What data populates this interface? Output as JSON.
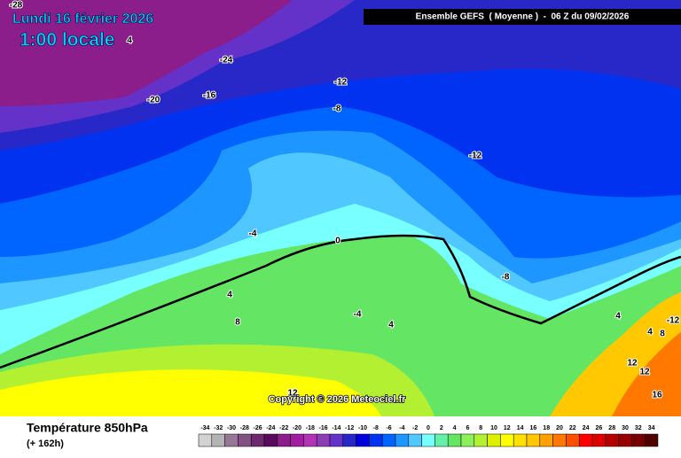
{
  "header": {
    "date": "Lundi 16 février 2026",
    "local_time": "1:00 locale",
    "model": "Ensemble GEFS  ( Moyenne )  -  06 Z du 09/02/2026"
  },
  "copyright": "Copyright © 2026 Meteociel.fr",
  "footer": {
    "title": "Température 850hPa",
    "lead": "(+ 162h)"
  },
  "contour_labels": [
    -28,
    4,
    -24,
    -20,
    -16,
    -12,
    -8,
    -12,
    -4,
    0,
    -8,
    4,
    8,
    -4,
    4,
    4,
    -12,
    4,
    8,
    12,
    12,
    16,
    12
  ],
  "colorbar": {
    "ticks": [
      -34,
      -32,
      -30,
      -28,
      -26,
      -24,
      -22,
      -20,
      -18,
      -16,
      -14,
      -12,
      -10,
      -8,
      -6,
      -4,
      -2,
      0,
      2,
      4,
      6,
      8,
      10,
      12,
      14,
      16,
      18,
      20,
      22,
      24,
      26,
      28,
      30,
      32,
      34
    ],
    "colors": [
      "#d2d2d2",
      "#b4b4b4",
      "#967896",
      "#825082",
      "#6e286e",
      "#5a0a5a",
      "#8c1e8c",
      "#a01ea0",
      "#b432b4",
      "#8c3cb4",
      "#6432c8",
      "#2828c8",
      "#0000dc",
      "#0032f0",
      "#0064ff",
      "#1e96ff",
      "#50c8ff",
      "#78ffff",
      "#64f0aa",
      "#64e664",
      "#8cf05a",
      "#b4f032",
      "#dcf000",
      "#ffff00",
      "#ffe100",
      "#ffc800",
      "#ffa000",
      "#ff7800",
      "#ff5000",
      "#ff0000",
      "#dc0000",
      "#b40000",
      "#960000",
      "#780000",
      "#500000"
    ]
  }
}
